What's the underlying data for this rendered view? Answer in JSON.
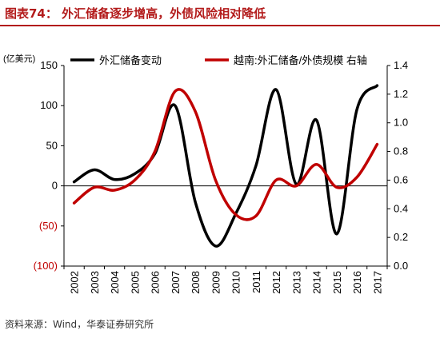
{
  "header": {
    "title": "图表74：  外汇储备逐步增高，外债风险相对降低"
  },
  "footer": {
    "source": "资料来源：Wind，华泰证券研究所"
  },
  "chart_data": {
    "type": "line",
    "title": "",
    "ylabel_left": "(亿美元)",
    "x": [
      "2002",
      "2003",
      "2004",
      "2005",
      "2006",
      "2007",
      "2008",
      "2009",
      "2010",
      "2011",
      "2012",
      "2013",
      "2014",
      "2015",
      "2016",
      "2017"
    ],
    "series": [
      {
        "name": "外汇储备变动",
        "axis": "left",
        "color": "#000000",
        "values": [
          5,
          20,
          8,
          15,
          40,
          100,
          -20,
          -75,
          -35,
          25,
          120,
          2,
          82,
          -60,
          95,
          125
        ]
      },
      {
        "name": "越南:外汇储备/外债规模 右轴",
        "axis": "right",
        "color": "#c00000",
        "values": [
          0.44,
          0.55,
          0.53,
          0.6,
          0.8,
          1.22,
          1.08,
          0.6,
          0.36,
          0.35,
          0.6,
          0.56,
          0.71,
          0.55,
          0.62,
          0.85
        ]
      }
    ],
    "left_axis": {
      "ylim": [
        -100,
        150
      ],
      "ticks": [
        150,
        100,
        50,
        0,
        -50,
        -100
      ],
      "tick_labels": [
        "150",
        "100",
        "50",
        "0",
        "(50)",
        "(100)"
      ],
      "negative_color": "#c00000"
    },
    "right_axis": {
      "ylim": [
        0,
        1.4
      ],
      "ticks": [
        1.4,
        1.2,
        1.0,
        0.8,
        0.6,
        0.4,
        0.2,
        0.0
      ],
      "tick_labels": [
        "1.4",
        "1.2",
        "1.0",
        "0.8",
        "0.6",
        "0.4",
        "0.2",
        "0.0"
      ]
    },
    "grid": false,
    "legend": "top"
  }
}
